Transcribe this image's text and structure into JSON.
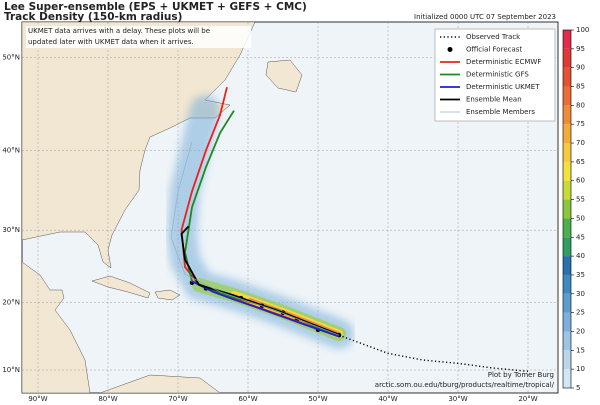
{
  "title": "Lee Super-ensemble (EPS + UKMET + GEFS + CMC)",
  "subtitle": "Track Density (150-km radius)",
  "initialized": "Initialized 0000 UTC 07 September 2023",
  "note": [
    "UKMET data arrives with a delay. These plots will be",
    "updated later with UKMET data when it arrives."
  ],
  "credit": [
    "Plot by Tomer Burg",
    "arctic.som.ou.edu/tburg/products/realtime/tropical/"
  ],
  "map": {
    "lon_ticks": [
      {
        "value": -90,
        "label": "90°W"
      },
      {
        "value": -80,
        "label": "80°W"
      },
      {
        "value": -70,
        "label": "70°W"
      },
      {
        "value": -60,
        "label": "60°W"
      },
      {
        "value": -50,
        "label": "50°W"
      },
      {
        "value": -40,
        "label": "40°W"
      },
      {
        "value": -30,
        "label": "30°W"
      },
      {
        "value": -20,
        "label": "20°W"
      }
    ],
    "lat_ticks": [
      {
        "value": 10,
        "label": "10°N"
      },
      {
        "value": 20,
        "label": "20°N"
      },
      {
        "value": 30,
        "label": "30°N"
      },
      {
        "value": 40,
        "label": "40°N"
      },
      {
        "value": 50,
        "label": "50°N"
      }
    ],
    "grid": true,
    "tracks": [
      {
        "name": "Observed Track",
        "color": "#000000",
        "style": "dotted",
        "lon": [
          -47,
          -40,
          -35,
          -30,
          -25,
          -20
        ],
        "lat": [
          15.2,
          12.5,
          11.5,
          11,
          10.3,
          9.8
        ]
      },
      {
        "name": "Official Forecast",
        "color": "#000000",
        "style": "points",
        "lon": [
          -47,
          -50,
          -53,
          -55,
          -58,
          -61,
          -66,
          -68
        ],
        "lat": [
          15.2,
          16,
          17.5,
          18.5,
          19.5,
          20.6,
          22,
          22.8
        ]
      },
      {
        "name": "Deterministic ECMWF",
        "color": "#e8231f",
        "style": "line",
        "lon": [
          -47,
          -55,
          -62,
          -67,
          -69,
          -69.5,
          -68,
          -66,
          -64,
          -63
        ],
        "lat": [
          15,
          18,
          20.5,
          22.5,
          25,
          30,
          35,
          40,
          44,
          47
        ]
      },
      {
        "name": "Deterministic GFS",
        "color": "#1e8a1e",
        "style": "line",
        "lon": [
          -47,
          -56,
          -63,
          -68,
          -69,
          -68,
          -66,
          -64,
          -62
        ],
        "lat": [
          15,
          19,
          21,
          23,
          27,
          33,
          38,
          42,
          44.5
        ]
      },
      {
        "name": "Deterministic UKMET",
        "color": "#1f1fd0",
        "style": "line",
        "lon": [
          -47,
          -52,
          -58,
          -62,
          -65,
          -68
        ],
        "lat": [
          15,
          16.8,
          19,
          20.4,
          21.5,
          23
        ]
      },
      {
        "name": "Ensemble Mean",
        "color": "#000000",
        "style": "line",
        "lon": [
          -47,
          -55,
          -62,
          -67,
          -69,
          -69.5,
          -68.5
        ],
        "lat": [
          15.3,
          18.5,
          21,
          22.5,
          26,
          29.5,
          30.5
        ]
      },
      {
        "name": "Ensemble Members",
        "color": "#8fb0c8",
        "style": "thin",
        "lon": [
          -47,
          -56,
          -64,
          -69,
          -71,
          -70,
          -68
        ],
        "lat": [
          15.2,
          18.8,
          21.5,
          24,
          29,
          35,
          41
        ]
      }
    ]
  },
  "colorbar": {
    "lim": [
      5,
      100
    ],
    "ticks": [
      5,
      10,
      15,
      20,
      25,
      30,
      35,
      40,
      45,
      50,
      55,
      60,
      65,
      70,
      75,
      80,
      85,
      90,
      95,
      100
    ],
    "colors": [
      "#d3e6f4",
      "#b9d6ed",
      "#9cc5e5",
      "#7db1db",
      "#5d9ed1",
      "#3f89c3",
      "#2a6fae",
      "#2e9e62",
      "#4cb04a",
      "#8cc63f",
      "#c8d93a",
      "#f3e23b",
      "#f7c840",
      "#f5ab3c",
      "#f08c38",
      "#ec6d35",
      "#e55133",
      "#de3a33",
      "#e32b4b"
    ]
  }
}
